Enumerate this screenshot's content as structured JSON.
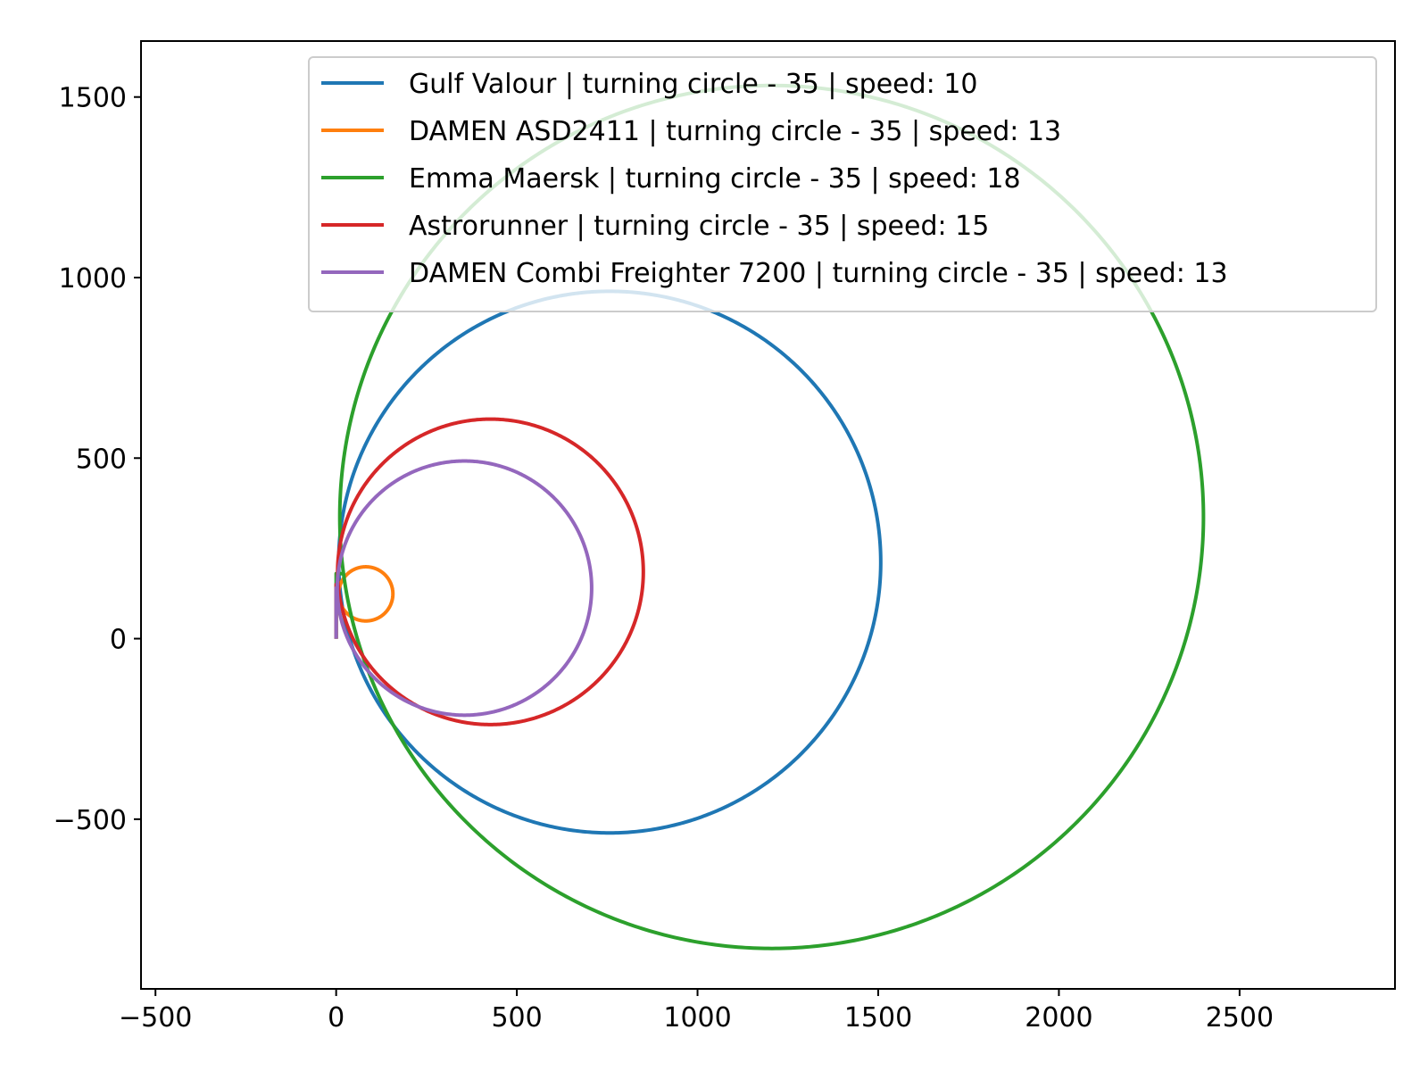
{
  "chart_data": {
    "type": "line",
    "title": "",
    "xlabel": "",
    "ylabel": "",
    "xlim": [
      -540,
      2930
    ],
    "ylim": [
      -970,
      1655
    ],
    "xticks": [
      -500,
      0,
      500,
      1000,
      1500,
      2000,
      2500
    ],
    "yticks": [
      -500,
      0,
      500,
      1000,
      1500
    ],
    "xtick_labels": [
      "−500",
      "0",
      "500",
      "1000",
      "1500",
      "2000",
      "2500"
    ],
    "ytick_labels": [
      "−500",
      "0",
      "500",
      "1000",
      "1500"
    ],
    "grid": false,
    "legend_position": "upper right",
    "series": [
      {
        "name": "Gulf Valour | turning circle - 35 | speed: 10",
        "color": "#1f77b4",
        "turning_circle": {
          "start": [
            0,
            0
          ],
          "straight_to_y": 130,
          "center": [
            757,
            212
          ],
          "radius": 750
        }
      },
      {
        "name": "DAMEN ASD2411 | turning circle - 35 | speed: 13",
        "color": "#ff7f0e",
        "turning_circle": {
          "start": [
            0,
            0
          ],
          "straight_to_y": 100,
          "center": [
            82,
            124
          ],
          "radius": 75
        }
      },
      {
        "name": "Emma Maersk | turning circle - 35 | speed: 18",
        "color": "#2ca02c",
        "turning_circle": {
          "start": [
            0,
            0
          ],
          "straight_to_y": 180,
          "center": [
            1205,
            337
          ],
          "radius": 1195
        }
      },
      {
        "name": "Astrorunner | turning circle - 35 | speed: 15",
        "color": "#d62728",
        "turning_circle": {
          "start": [
            0,
            0
          ],
          "straight_to_y": 150,
          "center": [
            427,
            185
          ],
          "radius": 423
        }
      },
      {
        "name": "DAMEN Combi Freighter 7200 | turning circle - 35 | speed: 13",
        "color": "#9467bd",
        "turning_circle": {
          "start": [
            0,
            0
          ],
          "straight_to_y": 140,
          "center": [
            355,
            140
          ],
          "radius": 352
        }
      }
    ]
  }
}
